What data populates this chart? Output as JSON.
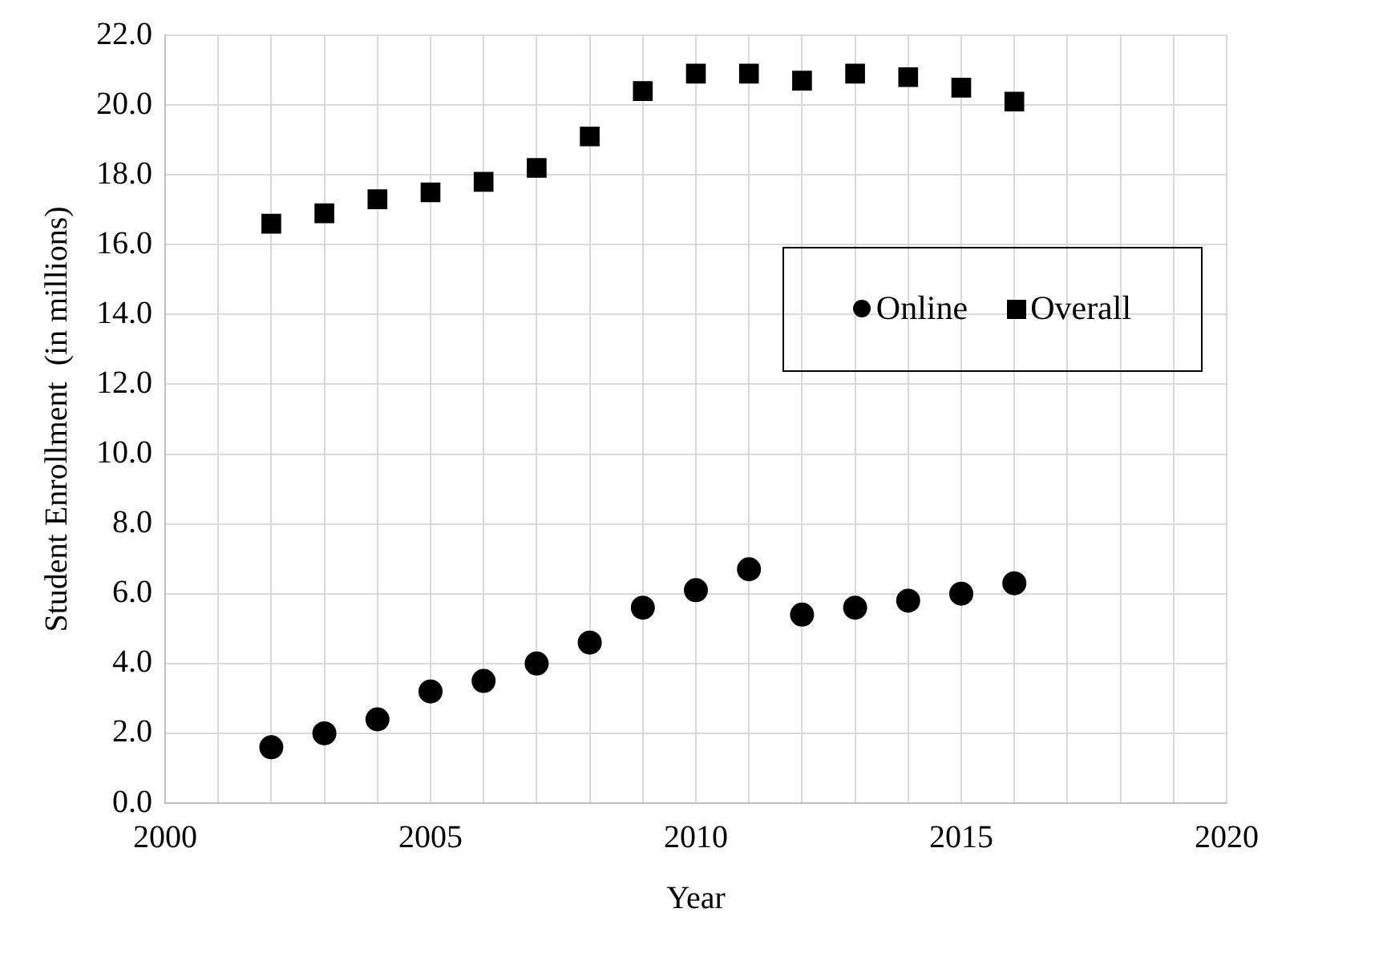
{
  "chart_data": {
    "type": "scatter",
    "xlabel": "Year",
    "ylabel": "Student Enrollment  (in millions)",
    "x": [
      2002,
      2003,
      2004,
      2005,
      2006,
      2007,
      2008,
      2009,
      2010,
      2011,
      2012,
      2013,
      2014,
      2015,
      2016
    ],
    "series": [
      {
        "name": "Online",
        "color": "#000000",
        "marker": "circle",
        "values": [
          1.6,
          2.0,
          2.4,
          3.2,
          3.5,
          4.0,
          4.6,
          5.6,
          6.1,
          6.7,
          5.4,
          5.6,
          5.8,
          6.0,
          6.3
        ]
      },
      {
        "name": "Overall",
        "color": "#000000",
        "marker": "square",
        "values": [
          16.6,
          16.9,
          17.3,
          17.5,
          17.8,
          18.2,
          19.1,
          20.4,
          20.9,
          20.9,
          20.7,
          20.9,
          20.8,
          20.5,
          20.1
        ]
      }
    ],
    "xlim": [
      2000,
      2020
    ],
    "xticks": [
      2000,
      {
        "value": 2001,
        "label": null
      },
      {
        "value": 2002,
        "label": null
      },
      {
        "value": 2003,
        "label": null
      },
      {
        "value": 2004,
        "label": null
      },
      2005,
      {
        "value": 2006,
        "label": null
      },
      {
        "value": 2007,
        "label": null
      },
      {
        "value": 2008,
        "label": null
      },
      {
        "value": 2009,
        "label": null
      },
      2010,
      {
        "value": 2011,
        "label": null
      },
      {
        "value": 2012,
        "label": null
      },
      {
        "value": 2013,
        "label": null
      },
      {
        "value": 2014,
        "label": null
      },
      2015,
      {
        "value": 2016,
        "label": null
      },
      {
        "value": 2017,
        "label": null
      },
      {
        "value": 2018,
        "label": null
      },
      {
        "value": 2019,
        "label": null
      },
      2020
    ],
    "ylim": [
      0,
      22
    ],
    "yticks": [
      {
        "value": 0,
        "label": "0.0"
      },
      {
        "value": 2,
        "label": "2.0"
      },
      {
        "value": 4,
        "label": "4.0"
      },
      {
        "value": 6,
        "label": "6.0"
      },
      {
        "value": 8,
        "label": "8.0"
      },
      {
        "value": 10,
        "label": "10.0"
      },
      {
        "value": 12,
        "label": "12.0"
      },
      {
        "value": 14,
        "label": "14.0"
      },
      {
        "value": 16,
        "label": "16.0"
      },
      {
        "value": 18,
        "label": "18.0"
      },
      {
        "value": 20,
        "label": "20.0"
      },
      {
        "value": 22,
        "label": "22.0"
      }
    ],
    "grid": true,
    "legend": "right"
  }
}
